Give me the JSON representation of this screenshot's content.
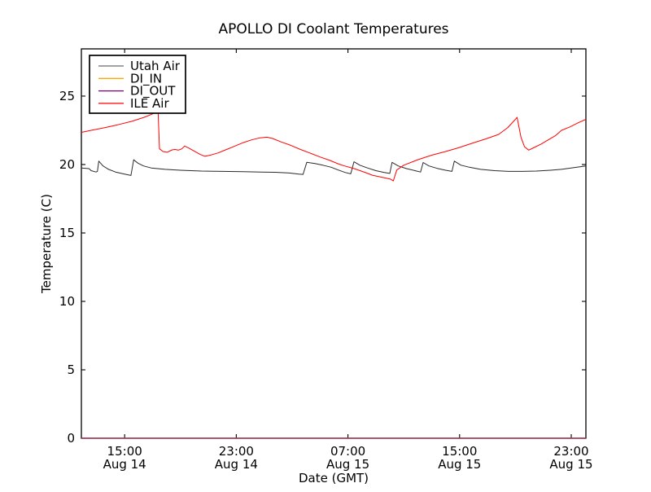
{
  "chart_data": {
    "type": "line",
    "title": "APOLLO DI Coolant Temperatures",
    "xlabel": "Date (GMT)",
    "ylabel": "Temperature (C)",
    "x_unit": "hours since Aug 14 00:00 GMT",
    "xlim": [
      11.9,
      48.05
    ],
    "ylim": [
      0,
      28.45
    ],
    "grid": false,
    "axis_color": "#000000",
    "background_color": "#ffffff",
    "legend_position": "upper-left",
    "xticks": [
      {
        "value": 15,
        "time": "15:00",
        "date": "Aug 14"
      },
      {
        "value": 23,
        "time": "23:00",
        "date": "Aug 14"
      },
      {
        "value": 31,
        "time": "07:00",
        "date": "Aug 15"
      },
      {
        "value": 39,
        "time": "15:00",
        "date": "Aug 15"
      },
      {
        "value": 47,
        "time": "23:00",
        "date": "Aug 15"
      }
    ],
    "yticks": [
      0,
      5,
      10,
      15,
      20,
      25
    ],
    "series": [
      {
        "name": "Utah Air",
        "color": "#2a2a2a",
        "width": 1.0,
        "points": [
          [
            11.9,
            19.75
          ],
          [
            12.45,
            19.7
          ],
          [
            12.6,
            19.55
          ],
          [
            12.95,
            19.45
          ],
          [
            13.05,
            19.5
          ],
          [
            13.15,
            20.25
          ],
          [
            13.45,
            19.9
          ],
          [
            13.85,
            19.65
          ],
          [
            14.35,
            19.45
          ],
          [
            15.0,
            19.3
          ],
          [
            15.45,
            19.2
          ],
          [
            15.65,
            20.35
          ],
          [
            15.95,
            20.1
          ],
          [
            16.35,
            19.9
          ],
          [
            16.9,
            19.75
          ],
          [
            17.9,
            19.65
          ],
          [
            19.0,
            19.58
          ],
          [
            20.5,
            19.52
          ],
          [
            22.0,
            19.5
          ],
          [
            23.5,
            19.48
          ],
          [
            24.8,
            19.45
          ],
          [
            25.8,
            19.43
          ],
          [
            26.8,
            19.38
          ],
          [
            27.5,
            19.3
          ],
          [
            27.78,
            19.28
          ],
          [
            28.05,
            20.16
          ],
          [
            28.6,
            20.08
          ],
          [
            29.2,
            19.95
          ],
          [
            29.8,
            19.8
          ],
          [
            30.3,
            19.6
          ],
          [
            30.8,
            19.42
          ],
          [
            31.2,
            19.32
          ],
          [
            31.43,
            20.2
          ],
          [
            31.85,
            19.95
          ],
          [
            32.4,
            19.75
          ],
          [
            33.0,
            19.55
          ],
          [
            33.6,
            19.42
          ],
          [
            34.0,
            19.35
          ],
          [
            34.16,
            20.16
          ],
          [
            34.6,
            19.9
          ],
          [
            35.2,
            19.7
          ],
          [
            35.8,
            19.55
          ],
          [
            36.2,
            19.45
          ],
          [
            36.39,
            20.15
          ],
          [
            36.8,
            19.9
          ],
          [
            37.4,
            19.72
          ],
          [
            38.0,
            19.58
          ],
          [
            38.45,
            19.5
          ],
          [
            38.62,
            20.25
          ],
          [
            39.1,
            19.95
          ],
          [
            39.7,
            19.8
          ],
          [
            40.5,
            19.65
          ],
          [
            41.5,
            19.55
          ],
          [
            42.5,
            19.5
          ],
          [
            43.5,
            19.5
          ],
          [
            44.5,
            19.52
          ],
          [
            45.5,
            19.58
          ],
          [
            46.3,
            19.65
          ],
          [
            47.2,
            19.78
          ],
          [
            48.05,
            19.9
          ]
        ]
      },
      {
        "name": "DI_IN",
        "color": "#ffa500",
        "width": 1.6,
        "points": [
          [
            11.9,
            0
          ],
          [
            48.05,
            0
          ]
        ]
      },
      {
        "name": "DI_OUT",
        "color": "#800080",
        "width": 1.1,
        "points": [
          [
            11.9,
            0
          ],
          [
            48.05,
            0
          ]
        ]
      },
      {
        "name": "ILE Air",
        "color": "#ff0000",
        "width": 1.0,
        "points": [
          [
            11.9,
            22.35
          ],
          [
            12.6,
            22.5
          ],
          [
            13.6,
            22.7
          ],
          [
            14.5,
            22.9
          ],
          [
            15.5,
            23.15
          ],
          [
            16.4,
            23.45
          ],
          [
            17.0,
            23.7
          ],
          [
            17.25,
            23.85
          ],
          [
            17.4,
            23.85
          ],
          [
            17.5,
            21.15
          ],
          [
            17.75,
            20.95
          ],
          [
            18.05,
            20.9
          ],
          [
            18.4,
            21.07
          ],
          [
            18.6,
            21.1
          ],
          [
            18.85,
            21.05
          ],
          [
            19.1,
            21.15
          ],
          [
            19.3,
            21.35
          ],
          [
            19.6,
            21.2
          ],
          [
            19.95,
            21.0
          ],
          [
            20.4,
            20.75
          ],
          [
            20.75,
            20.6
          ],
          [
            21.2,
            20.7
          ],
          [
            21.7,
            20.85
          ],
          [
            22.3,
            21.1
          ],
          [
            22.9,
            21.35
          ],
          [
            23.5,
            21.6
          ],
          [
            24.1,
            21.8
          ],
          [
            24.7,
            21.95
          ],
          [
            25.2,
            22.0
          ],
          [
            25.6,
            21.9
          ],
          [
            26.2,
            21.65
          ],
          [
            26.9,
            21.4
          ],
          [
            27.6,
            21.1
          ],
          [
            28.25,
            20.85
          ],
          [
            29.0,
            20.55
          ],
          [
            29.7,
            20.3
          ],
          [
            30.3,
            20.05
          ],
          [
            30.75,
            19.9
          ],
          [
            31.45,
            19.7
          ],
          [
            32.3,
            19.4
          ],
          [
            32.75,
            19.22
          ],
          [
            33.5,
            19.05
          ],
          [
            34.05,
            18.93
          ],
          [
            34.25,
            18.8
          ],
          [
            34.5,
            19.6
          ],
          [
            35.0,
            19.95
          ],
          [
            36.0,
            20.35
          ],
          [
            37.0,
            20.68
          ],
          [
            38.0,
            20.95
          ],
          [
            38.9,
            21.22
          ],
          [
            39.9,
            21.55
          ],
          [
            40.9,
            21.88
          ],
          [
            41.8,
            22.2
          ],
          [
            42.45,
            22.7
          ],
          [
            43.0,
            23.3
          ],
          [
            43.12,
            23.45
          ],
          [
            43.4,
            22.0
          ],
          [
            43.65,
            21.3
          ],
          [
            43.95,
            21.05
          ],
          [
            44.35,
            21.25
          ],
          [
            44.85,
            21.5
          ],
          [
            45.35,
            21.8
          ],
          [
            45.85,
            22.1
          ],
          [
            46.3,
            22.5
          ],
          [
            46.9,
            22.75
          ],
          [
            47.5,
            23.05
          ],
          [
            48.05,
            23.3
          ]
        ]
      }
    ],
    "legend": {
      "entries": [
        "Utah Air",
        "DI_IN",
        "DI_OUT",
        "ILE Air"
      ],
      "swatch_colors": [
        "#6a6a6a",
        "#ffa500",
        "#800080",
        "#ff0000"
      ]
    }
  }
}
